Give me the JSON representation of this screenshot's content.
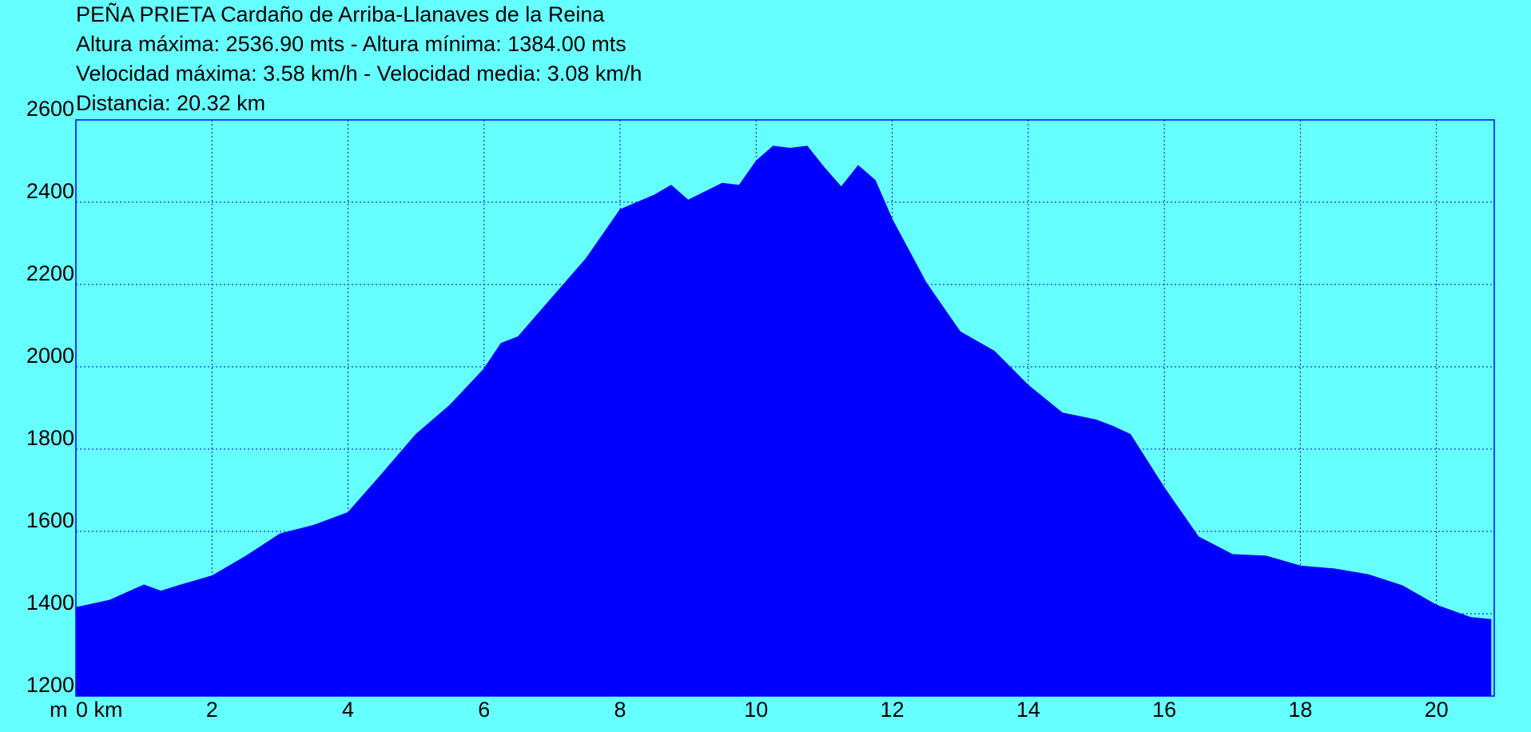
{
  "chart_data": {
    "type": "area",
    "title": "PEÑA PRIETA Cardaño de Arriba-Llanaves de la Reina",
    "subtitle_lines": [
      "Altura máxima: 2536.90 mts - Altura mínima: 1384.00 mts",
      "Velocidad máxima: 3.58 km/h - Velocidad media: 3.08 km/h",
      "Distancia: 20.32 km"
    ],
    "y_unit": "m",
    "x": [
      0,
      0.5,
      1.0,
      1.25,
      1.5,
      2.0,
      2.5,
      3.0,
      3.5,
      4.0,
      4.5,
      5.0,
      5.5,
      6.0,
      6.25,
      6.5,
      7.0,
      7.5,
      8.0,
      8.5,
      8.75,
      9.0,
      9.5,
      9.75,
      10.0,
      10.25,
      10.5,
      10.75,
      11.0,
      11.25,
      11.5,
      11.75,
      12.0,
      12.5,
      13.0,
      13.5,
      14.0,
      14.5,
      15.0,
      15.25,
      15.5,
      16.0,
      16.5,
      17.0,
      17.5,
      18.0,
      18.5,
      19.0,
      19.5,
      20.0,
      20.5,
      20.8
    ],
    "values": [
      1415,
      1433,
      1470,
      1455,
      1468,
      1492,
      1540,
      1594,
      1615,
      1646,
      1740,
      1836,
      1907,
      1995,
      2057,
      2073,
      2168,
      2263,
      2382,
      2417,
      2441,
      2405,
      2446,
      2441,
      2500,
      2536,
      2531,
      2536,
      2484,
      2437,
      2489,
      2453,
      2358,
      2204,
      2085,
      2038,
      1955,
      1888,
      1871,
      1855,
      1836,
      1706,
      1587,
      1544,
      1540,
      1516,
      1509,
      1495,
      1468,
      1421,
      1391,
      1386
    ],
    "color": "#0000ff",
    "xlim": [
      0,
      20.85
    ],
    "xticks": [
      {
        "value": 0,
        "label": "0 km"
      },
      2,
      4,
      6,
      8,
      10,
      12,
      14,
      16,
      18,
      20
    ],
    "ylim": [
      1200,
      2600
    ],
    "yticks": [
      1200,
      1400,
      1600,
      1800,
      2000,
      2200,
      2400,
      2600
    ],
    "grid": true
  }
}
